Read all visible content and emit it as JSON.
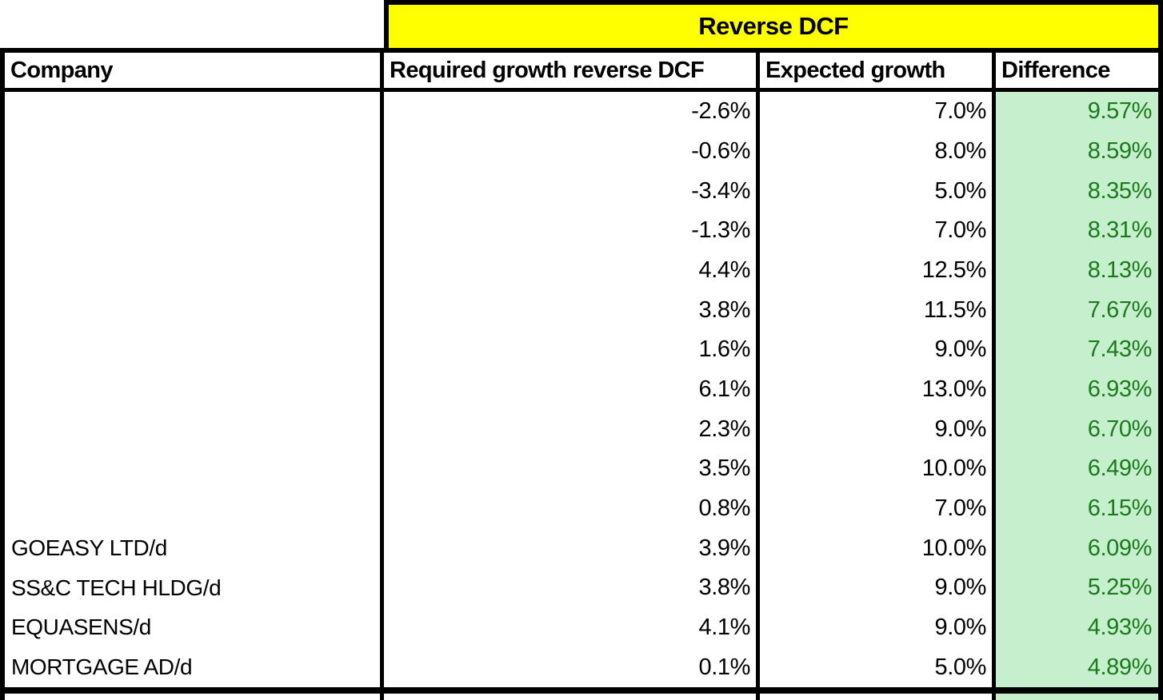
{
  "banner": {
    "title": "Reverse DCF"
  },
  "columns": [
    {
      "key": "company",
      "label": "Company"
    },
    {
      "key": "required",
      "label": "Required growth reverse DCF"
    },
    {
      "key": "expected",
      "label": "Expected growth"
    },
    {
      "key": "difference",
      "label": "Difference"
    }
  ],
  "rows": [
    {
      "company": "",
      "required": "-2.6%",
      "expected": "7.0%",
      "difference": "9.57%"
    },
    {
      "company": "",
      "required": "-0.6%",
      "expected": "8.0%",
      "difference": "8.59%"
    },
    {
      "company": "",
      "required": "-3.4%",
      "expected": "5.0%",
      "difference": "8.35%"
    },
    {
      "company": "",
      "required": "-1.3%",
      "expected": "7.0%",
      "difference": "8.31%"
    },
    {
      "company": "",
      "required": "4.4%",
      "expected": "12.5%",
      "difference": "8.13%"
    },
    {
      "company": "",
      "required": "3.8%",
      "expected": "11.5%",
      "difference": "7.67%"
    },
    {
      "company": "",
      "required": "1.6%",
      "expected": "9.0%",
      "difference": "7.43%"
    },
    {
      "company": "",
      "required": "6.1%",
      "expected": "13.0%",
      "difference": "6.93%"
    },
    {
      "company": "",
      "required": "2.3%",
      "expected": "9.0%",
      "difference": "6.70%"
    },
    {
      "company": "",
      "required": "3.5%",
      "expected": "10.0%",
      "difference": "6.49%"
    },
    {
      "company": "",
      "required": "0.8%",
      "expected": "7.0%",
      "difference": "6.15%"
    },
    {
      "company": "GOEASY LTD/d",
      "required": "3.9%",
      "expected": "10.0%",
      "difference": "6.09%"
    },
    {
      "company": "SS&C TECH HLDG/d",
      "required": "3.8%",
      "expected": "9.0%",
      "difference": "5.25%"
    },
    {
      "company": "EQUASENS/d",
      "required": "4.1%",
      "expected": "9.0%",
      "difference": "4.93%"
    },
    {
      "company": "MORTGAGE AD/d",
      "required": "0.1%",
      "expected": "5.0%",
      "difference": "4.89%"
    }
  ],
  "colors": {
    "banner_fill": "#FFFF00",
    "difference_fill": "#C6EFCE",
    "difference_text": "#1B7A1B",
    "border": "#000000"
  },
  "chart_data": {
    "type": "table",
    "title": "Reverse DCF",
    "columns": [
      "Company",
      "Required growth reverse DCF",
      "Expected growth",
      "Difference"
    ],
    "required_growth_values": [
      -2.6,
      -0.6,
      -3.4,
      -1.3,
      4.4,
      3.8,
      1.6,
      6.1,
      2.3,
      3.5,
      0.8,
      3.9,
      3.8,
      4.1,
      0.1
    ],
    "expected_growth_values": [
      7.0,
      8.0,
      5.0,
      7.0,
      12.5,
      11.5,
      9.0,
      13.0,
      9.0,
      10.0,
      7.0,
      10.0,
      9.0,
      9.0,
      5.0
    ],
    "difference_values": [
      9.57,
      8.59,
      8.35,
      8.31,
      8.13,
      7.67,
      7.43,
      6.93,
      6.7,
      6.49,
      6.15,
      6.09,
      5.25,
      4.93,
      4.89
    ],
    "visible_companies": [
      "GOEASY LTD/d",
      "SS&C TECH HLDG/d",
      "EQUASENS/d",
      "MORTGAGE AD/d"
    ]
  }
}
